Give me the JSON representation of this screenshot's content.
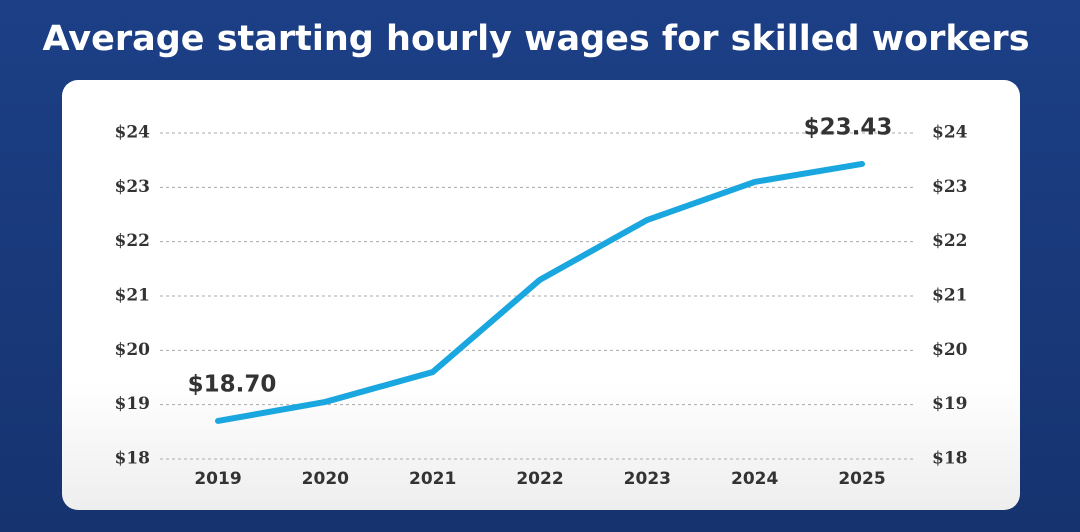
{
  "chart_data": {
    "type": "line",
    "title": "Average starting hourly wages for skilled workers",
    "categories": [
      "2019",
      "2020",
      "2021",
      "2022",
      "2023",
      "2024",
      "2025"
    ],
    "values": [
      18.7,
      19.05,
      19.6,
      21.3,
      22.4,
      23.1,
      23.43
    ],
    "value_labels": [
      "$18.70",
      null,
      null,
      null,
      null,
      null,
      "$23.43"
    ],
    "color": "#1aa7e0",
    "ylim": [
      18,
      24
    ],
    "yticks": [
      {
        "value": 18,
        "label": "$18"
      },
      {
        "value": 19,
        "label": "$19"
      },
      {
        "value": 20,
        "label": "$20"
      },
      {
        "value": 21,
        "label": "$21"
      },
      {
        "value": 22,
        "label": "$22"
      },
      {
        "value": 23,
        "label": "$23"
      },
      {
        "value": 24,
        "label": "$24"
      }
    ],
    "y2lim": [
      18,
      24
    ],
    "y2ticks": [
      {
        "value": 18,
        "label": "$18"
      },
      {
        "value": 19,
        "label": "$19"
      },
      {
        "value": 20,
        "label": "$20"
      },
      {
        "value": 21,
        "label": "$21"
      },
      {
        "value": 22,
        "label": "$22"
      },
      {
        "value": 23,
        "label": "$23"
      },
      {
        "value": 24,
        "label": "$24"
      }
    ],
    "grid": true
  }
}
